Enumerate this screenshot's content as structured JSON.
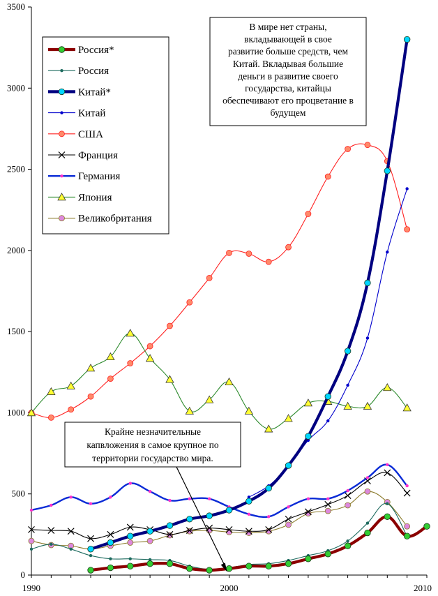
{
  "chart_data": {
    "type": "line",
    "title": "",
    "xlabel": "",
    "ylabel": "",
    "xlim": [
      1990,
      2010
    ],
    "ylim": [
      0,
      3500
    ],
    "x_ticks": [
      "1990",
      "2000",
      "2010"
    ],
    "y_ticks": [
      "0",
      "500",
      "1000",
      "1500",
      "2000",
      "2500",
      "3000",
      "3500"
    ],
    "legend_position": "top-left",
    "series": [
      {
        "name": "Россия*",
        "color": "#8b0000",
        "marker": "circle-filled",
        "marker_color": "#33cc33",
        "weight": "bold",
        "x": [
          1993,
          1994,
          1995,
          1996,
          1997,
          1998,
          1999,
          2000,
          2001,
          2002,
          2003,
          2004,
          2005,
          2006,
          2007,
          2008,
          2009,
          2010
        ],
        "y": [
          30,
          45,
          55,
          70,
          70,
          40,
          30,
          40,
          55,
          55,
          70,
          100,
          130,
          180,
          260,
          360,
          240,
          300
        ]
      },
      {
        "name": "Россия",
        "color": "#1e6b5f",
        "marker": "dot",
        "marker_color": "#1e6b5f",
        "weight": "thin",
        "x": [
          1990,
          1991,
          1992,
          1993,
          1994,
          1995,
          1996,
          1997,
          1998,
          1999,
          2000,
          2001,
          2002,
          2003,
          2004,
          2005,
          2006,
          2007,
          2008,
          2009
        ],
        "y": [
          160,
          190,
          160,
          120,
          100,
          100,
          95,
          90,
          55,
          35,
          45,
          65,
          70,
          90,
          120,
          150,
          210,
          320,
          440,
          240
        ]
      },
      {
        "name": "Китай*",
        "color": "#000080",
        "marker": "circle-filled",
        "marker_color": "#00d5ff",
        "weight": "bold",
        "x": [
          1993,
          1994,
          1995,
          1996,
          1997,
          1998,
          1999,
          2000,
          2001,
          2002,
          2003,
          2004,
          2005,
          2006,
          2007,
          2008,
          2009
        ],
        "y": [
          160,
          200,
          240,
          270,
          305,
          345,
          365,
          400,
          455,
          535,
          675,
          855,
          1100,
          1380,
          1800,
          2490,
          3300
        ]
      },
      {
        "name": "Китай",
        "color": "#0000cc",
        "marker": "dot",
        "marker_color": "#0000cc",
        "weight": "thin",
        "x": [
          2001,
          2002,
          2003,
          2004,
          2005,
          2006,
          2007,
          2008,
          2009
        ],
        "y": [
          480,
          550,
          670,
          830,
          950,
          1170,
          1460,
          1990,
          2380
        ]
      },
      {
        "name": "США",
        "color": "#ff2222",
        "marker": "circle-filled",
        "marker_color": "#ff8a6a",
        "weight": "thin",
        "x": [
          1990,
          1991,
          1992,
          1993,
          1994,
          1995,
          1996,
          1997,
          1998,
          1999,
          2000,
          2001,
          2002,
          2003,
          2004,
          2005,
          2006,
          2007,
          2008,
          2009
        ],
        "y": [
          1000,
          970,
          1020,
          1100,
          1210,
          1305,
          1410,
          1535,
          1680,
          1830,
          1985,
          1980,
          1930,
          2020,
          2225,
          2455,
          2625,
          2650,
          2550,
          2130
        ]
      },
      {
        "name": "Франция",
        "color": "#000000",
        "marker": "x",
        "marker_color": "#000000",
        "weight": "thin",
        "x": [
          1990,
          1991,
          1992,
          1993,
          1994,
          1995,
          1996,
          1997,
          1998,
          1999,
          2000,
          2001,
          2002,
          2003,
          2004,
          2005,
          2006,
          2007,
          2008,
          2009
        ],
        "y": [
          280,
          275,
          270,
          225,
          250,
          295,
          280,
          250,
          275,
          290,
          280,
          270,
          280,
          345,
          390,
          435,
          490,
          580,
          630,
          505
        ]
      },
      {
        "name": "Германия",
        "color": "#0a2bd6",
        "marker": "dot",
        "marker_color": "#ff33cc",
        "weight": "bold",
        "x": [
          1990,
          1991,
          1992,
          1993,
          1994,
          1995,
          1996,
          1997,
          1998,
          1999,
          2000,
          2001,
          2002,
          2003,
          2004,
          2005,
          2006,
          2007,
          2008,
          2009
        ],
        "y": [
          400,
          430,
          480,
          440,
          480,
          565,
          515,
          460,
          470,
          470,
          420,
          375,
          360,
          420,
          470,
          470,
          520,
          600,
          680,
          550
        ]
      },
      {
        "name": "Япония",
        "color": "#2e8b2e",
        "marker": "triangle",
        "marker_color": "#ffff33",
        "weight": "thin",
        "x": [
          1990,
          1991,
          1992,
          1993,
          1994,
          1995,
          1996,
          1997,
          1998,
          1999,
          2000,
          2001,
          2002,
          2003,
          2004,
          2005,
          2006,
          2007,
          2008,
          2009
        ],
        "y": [
          1000,
          1130,
          1165,
          1275,
          1345,
          1490,
          1335,
          1205,
          1010,
          1080,
          1190,
          1010,
          900,
          965,
          1060,
          1070,
          1040,
          1040,
          1155,
          1030
        ]
      },
      {
        "name": "Великобритания",
        "color": "#8b7b2b",
        "marker": "circle-filled",
        "marker_color": "#dd88dd",
        "weight": "thin",
        "x": [
          1990,
          1991,
          1992,
          1993,
          1994,
          1995,
          1996,
          1997,
          1998,
          1999,
          2000,
          2001,
          2002,
          2003,
          2004,
          2005,
          2006,
          2007,
          2008,
          2009
        ],
        "y": [
          210,
          185,
          180,
          160,
          180,
          200,
          210,
          245,
          270,
          275,
          265,
          260,
          270,
          310,
          380,
          395,
          430,
          515,
          450,
          300
        ]
      }
    ],
    "annotations": [
      "В мире нет страны, вкладывающей в свое развитие больше средств, чем Китай. Вкладывая большие деньги в развитие своего государства, китайцы обеспечивают его процветание в будущем",
      "Крайне незначительные капвложения в самое крупное по территории государство мира."
    ],
    "annotation_lines": {
      "top": [
        "В мире нет страны,",
        "вкладывающей в свое",
        "развитие больше средств, чем",
        "Китай. Вкладывая большие",
        "деньги в развитие своего",
        "государства, китайцы",
        "обеспечивают его процветание в",
        "будущем"
      ],
      "bottom": [
        "Крайне незначительные",
        "капвложения в самое крупное по",
        "территории государство мира."
      ]
    },
    "arrow_target": {
      "x": 1999.9,
      "y": 20
    }
  }
}
